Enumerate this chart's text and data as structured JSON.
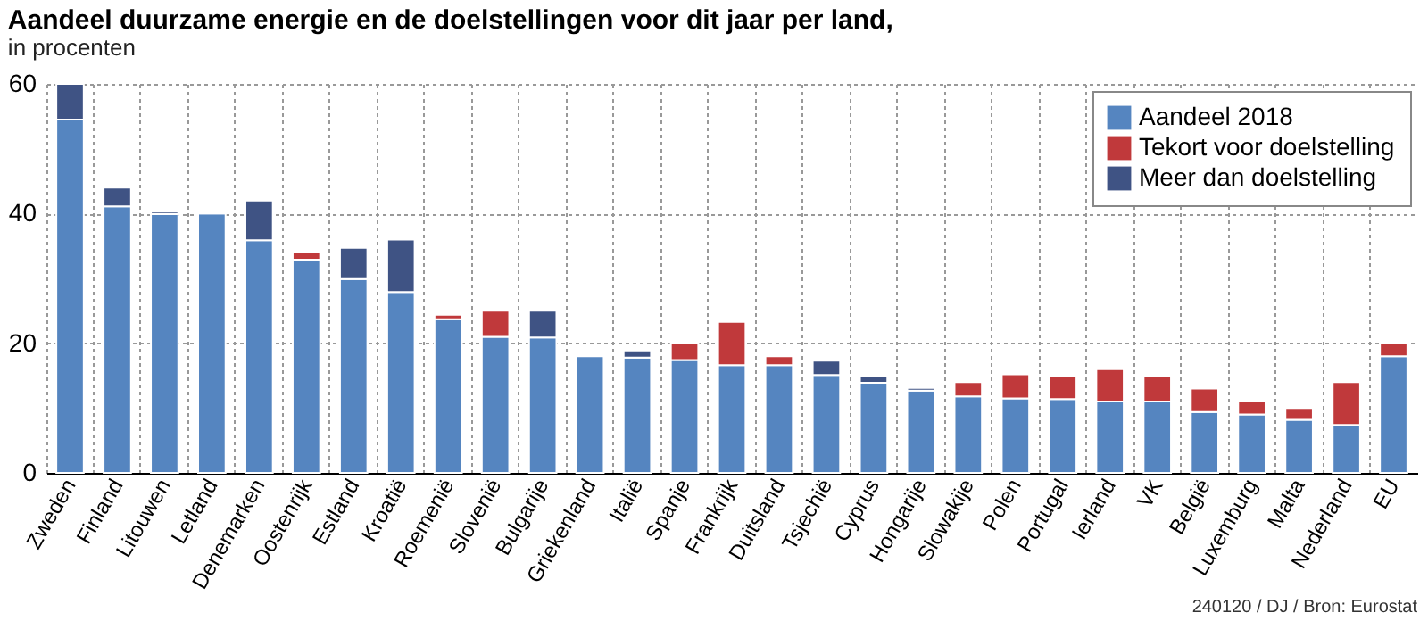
{
  "chart_data": {
    "type": "bar",
    "title": "Aandeel duurzame energie en de doelstellingen voor dit jaar per land,",
    "subtitle": "in procenten",
    "categories": [
      "Zweden",
      "Finland",
      "Litouwen",
      "Letland",
      "Denemarken",
      "Oostenrijk",
      "Estland",
      "Kroatië",
      "Roemenië",
      "Slovenië",
      "Bulgarije",
      "Griekenland",
      "Italië",
      "Spanje",
      "Frankrijk",
      "Duitsland",
      "Tsjechië",
      "Cyprus",
      "Hongarije",
      "Slowakije",
      "Polen",
      "Portugal",
      "Ierland",
      "VK",
      "België",
      "Luxemburg",
      "Malta",
      "Nederland",
      "EU"
    ],
    "stacked": true,
    "series": [
      {
        "name": "Aandeel 2018",
        "color": "#5585c0",
        "values": [
          54.5,
          41.1,
          39.9,
          40.0,
          35.9,
          32.9,
          29.9,
          27.9,
          23.7,
          21.0,
          20.9,
          18.0,
          17.8,
          17.4,
          16.6,
          16.6,
          15.1,
          13.9,
          12.7,
          11.8,
          11.5,
          11.4,
          11.0,
          11.0,
          9.4,
          9.0,
          8.2,
          7.4,
          18.0
        ]
      },
      {
        "name": "Tekort voor doelstelling",
        "color": "#c0393b",
        "values": [
          null,
          null,
          null,
          null,
          null,
          1.1,
          null,
          null,
          0.7,
          4.0,
          null,
          null,
          null,
          2.6,
          6.7,
          1.4,
          null,
          null,
          null,
          2.2,
          3.7,
          3.6,
          5.0,
          4.0,
          3.6,
          2.0,
          1.8,
          6.6,
          2.0
        ]
      },
      {
        "name": "Meer dan doelstelling",
        "color": "#3f5384",
        "values": [
          5.5,
          2.9,
          0.4,
          0.3,
          6.1,
          null,
          4.8,
          8.1,
          null,
          null,
          4.1,
          null,
          1.1,
          null,
          null,
          null,
          2.2,
          1.0,
          0.4,
          null,
          null,
          null,
          null,
          null,
          null,
          null,
          null,
          null,
          null
        ]
      }
    ],
    "ylim": [
      0,
      60
    ],
    "yticks": [
      0,
      20,
      40,
      60
    ],
    "grid": true,
    "legend": "top right",
    "annotations": [
      "240120 / DJ / Bron: Eurostat"
    ]
  }
}
